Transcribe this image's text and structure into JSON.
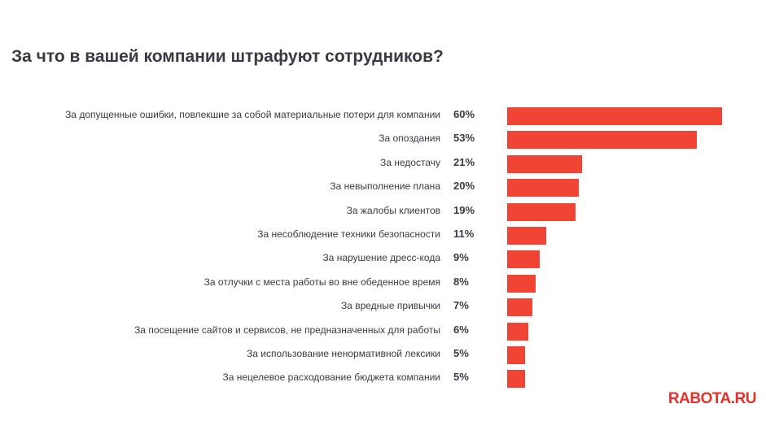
{
  "brand": {
    "logo_text": "RABOTA.RU",
    "accent_color": "#f04434"
  },
  "chart_data": {
    "type": "bar",
    "orientation": "horizontal",
    "title": "За что в вашей компании штрафуют сотрудников?",
    "categories": [
      "За допущенные ошибки, повлекшие за собой материальные потери для компании",
      "За опоздания",
      "За недостачу",
      "За невыполнение плана",
      "За жалобы клиентов",
      "За несоблюдение техники безопасности",
      "За нарушение дресс-кода",
      "За отлучки с места работы во вне обеденное время",
      "За вредные привычки",
      "За посещение сайтов и сервисов, не предназначенных для работы",
      "За использование ненормативной лексики",
      "За нецелевое расходование бюджета компании"
    ],
    "values": [
      60,
      53,
      21,
      20,
      19,
      11,
      9,
      8,
      7,
      6,
      5,
      5
    ],
    "value_labels": [
      "60%",
      "53%",
      "21%",
      "20%",
      "19%",
      "11%",
      "9%",
      "8%",
      "7%",
      "6%",
      "5%",
      "5%"
    ],
    "unit": "%",
    "xlim": [
      0,
      60
    ],
    "grid": false,
    "legend": "none",
    "bar_color": "#f04434"
  }
}
